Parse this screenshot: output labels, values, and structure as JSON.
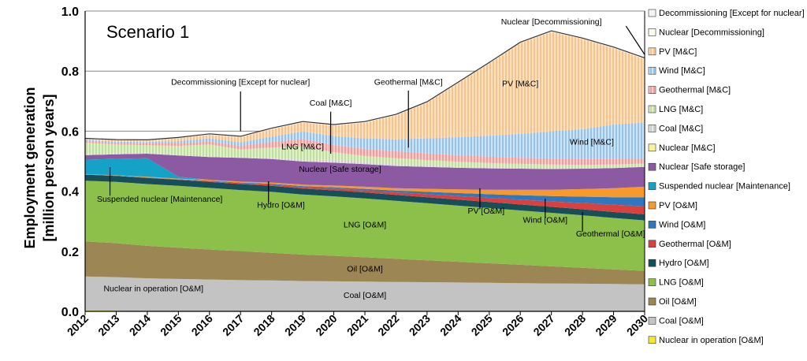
{
  "chart_data": {
    "type": "area",
    "title": "Scenario 1",
    "ylabel_line1": "Employment generation",
    "ylabel_line2": "[million person years]",
    "xlabel": "",
    "ylim": [
      0,
      1.0
    ],
    "yticks": [
      "0.0",
      "0.2",
      "0.4",
      "0.6",
      "0.8",
      "1.0"
    ],
    "x": [
      "2012",
      "2013",
      "2014",
      "2015",
      "2016",
      "2017",
      "2018",
      "2019",
      "2020",
      "2021",
      "2022",
      "2023",
      "2024",
      "2025",
      "2026",
      "2027",
      "2028",
      "2029",
      "2030"
    ],
    "series": [
      {
        "name": "Nuclear in operation [O&M]",
        "color": "#f2ea27",
        "values": [
          0.003,
          0.002,
          0,
          0,
          0,
          0,
          0,
          0,
          0,
          0,
          0,
          0,
          0,
          0,
          0,
          0,
          0,
          0,
          0
        ]
      },
      {
        "name": "Coal [O&M]",
        "color": "#c3c3c3",
        "values": [
          0.113,
          0.112,
          0.11,
          0.108,
          0.106,
          0.104,
          0.103,
          0.101,
          0.1,
          0.099,
          0.098,
          0.097,
          0.096,
          0.095,
          0.094,
          0.093,
          0.092,
          0.091,
          0.09
        ]
      },
      {
        "name": "Oil [O&M]",
        "color": "#9c8653",
        "values": [
          0.117,
          0.113,
          0.108,
          0.104,
          0.1,
          0.096,
          0.092,
          0.088,
          0.085,
          0.081,
          0.077,
          0.073,
          0.069,
          0.065,
          0.061,
          0.057,
          0.053,
          0.049,
          0.045
        ]
      },
      {
        "name": "LNG [O&M]",
        "color": "#8dc04a",
        "values": [
          0.202,
          0.204,
          0.206,
          0.206,
          0.205,
          0.204,
          0.203,
          0.2,
          0.198,
          0.196,
          0.193,
          0.19,
          0.187,
          0.184,
          0.181,
          0.178,
          0.175,
          0.171,
          0.168
        ]
      },
      {
        "name": "Hydro [O&M]",
        "color": "#164f5a",
        "values": [
          0.02,
          0.02,
          0.02,
          0.02,
          0.02,
          0.02,
          0.02,
          0.02,
          0.02,
          0.02,
          0.02,
          0.02,
          0.02,
          0.02,
          0.02,
          0.02,
          0.02,
          0.02,
          0.02
        ]
      },
      {
        "name": "Geothermal [O&M]",
        "color": "#d9413f",
        "values": [
          0,
          0,
          0.001,
          0.001,
          0.002,
          0.003,
          0.004,
          0.005,
          0.006,
          0.007,
          0.008,
          0.01,
          0.012,
          0.014,
          0.016,
          0.018,
          0.021,
          0.024,
          0.027
        ]
      },
      {
        "name": "Wind [O&M]",
        "color": "#2f78bf",
        "values": [
          0.001,
          0.001,
          0.001,
          0.001,
          0.002,
          0.002,
          0.003,
          0.003,
          0.004,
          0.005,
          0.006,
          0.008,
          0.01,
          0.012,
          0.015,
          0.018,
          0.021,
          0.025,
          0.03
        ]
      },
      {
        "name": "PV [O&M]",
        "color": "#f79a2b",
        "values": [
          0.001,
          0.001,
          0.002,
          0.002,
          0.003,
          0.003,
          0.004,
          0.005,
          0.006,
          0.007,
          0.008,
          0.01,
          0.012,
          0.015,
          0.018,
          0.021,
          0.025,
          0.03,
          0.035
        ]
      },
      {
        "name": "Suspended nuclear [Maintenance]",
        "color": "#14a3c6",
        "values": [
          0.048,
          0.055,
          0.062,
          0.006,
          0,
          0,
          0,
          0,
          0,
          0,
          0,
          0,
          0,
          0,
          0,
          0,
          0,
          0,
          0
        ]
      },
      {
        "name": "Nuclear [Safe storage]",
        "color": "#8b5aa3",
        "values": [
          0.015,
          0.015,
          0.015,
          0.071,
          0.076,
          0.079,
          0.078,
          0.077,
          0.076,
          0.075,
          0.074,
          0.073,
          0.072,
          0.071,
          0.07,
          0.069,
          0.068,
          0.067,
          0.066
        ]
      },
      {
        "name": "Nuclear [M&C]",
        "color": "#f6f494",
        "values": [
          0,
          0,
          0,
          0,
          0,
          0,
          0,
          0,
          0,
          0,
          0,
          0,
          0,
          0,
          0,
          0,
          0,
          0,
          0
        ]
      },
      {
        "name": "Coal [M&C]",
        "color": "#d8d8d8",
        "values": [
          0.004,
          0.003,
          0.003,
          0.002,
          0.002,
          0.003,
          0.004,
          0.005,
          0.01,
          0.007,
          0.006,
          0.005,
          0.004,
          0.004,
          0.003,
          0.003,
          0.002,
          0.002,
          0.002
        ]
      },
      {
        "name": "LNG [M&C]",
        "color": "#c9e4a5",
        "values": [
          0.038,
          0.03,
          0.025,
          0.03,
          0.04,
          0.025,
          0.035,
          0.045,
          0.025,
          0.02,
          0.02,
          0.018,
          0.016,
          0.014,
          0.013,
          0.012,
          0.011,
          0.01,
          0.009
        ]
      },
      {
        "name": "Geothermal [M&C]",
        "color": "#f4aaa8",
        "values": [
          0.005,
          0.005,
          0.006,
          0.008,
          0.01,
          0.012,
          0.018,
          0.025,
          0.024,
          0.024,
          0.023,
          0.022,
          0.022,
          0.021,
          0.02,
          0.02,
          0.019,
          0.018,
          0.017
        ]
      },
      {
        "name": "Wind [M&C]",
        "color": "#a2cbee",
        "values": [
          0.004,
          0.004,
          0.005,
          0.008,
          0.01,
          0.012,
          0.018,
          0.025,
          0.03,
          0.035,
          0.04,
          0.05,
          0.06,
          0.07,
          0.08,
          0.09,
          0.1,
          0.115,
          0.12
        ]
      },
      {
        "name": "PV [M&C]",
        "color": "#fbd2a6",
        "values": [
          0.003,
          0.005,
          0.005,
          0.01,
          0.012,
          0.017,
          0.025,
          0.03,
          0.035,
          0.053,
          0.08,
          0.119,
          0.18,
          0.241,
          0.302,
          0.332,
          0.3,
          0.255,
          0.211
        ]
      },
      {
        "name": "Nuclear [Decommissioning]",
        "color": "#fbfbf0",
        "values": [
          0.001,
          0.001,
          0.001,
          0.001,
          0.001,
          0.001,
          0.001,
          0.001,
          0.001,
          0.001,
          0.001,
          0.001,
          0.001,
          0.001,
          0.001,
          0.001,
          0.001,
          0.001,
          0.002
        ]
      },
      {
        "name": "Decommissioning [Except for nuclear]",
        "color": "#f4f4f4",
        "values": [
          0.001,
          0.001,
          0.001,
          0.001,
          0.002,
          0.002,
          0.002,
          0.002,
          0.002,
          0.002,
          0.002,
          0.002,
          0.002,
          0.002,
          0.002,
          0.002,
          0.002,
          0.002,
          0.002
        ]
      }
    ],
    "legend_order": [
      "Decommissioning [Except for nuclear]",
      "Nuclear [Decommissioning]",
      "PV [M&C]",
      "Wind [M&C]",
      "Geothermal [M&C]",
      "LNG [M&C]",
      "Coal [M&C]",
      "Nuclear [M&C]",
      "Nuclear [Safe storage]",
      "Suspended nuclear [Maintenance]",
      "PV [O&M]",
      "Wind [O&M]",
      "Geothermal [O&M]",
      "Hydro [O&M]",
      "LNG [O&M]",
      "Oil [O&M]",
      "Coal [O&M]",
      "Nuclear in operation [O&M]"
    ],
    "legend_position": "right",
    "annotations": [
      {
        "text": "Decommissioning [Except for nuclear]",
        "year": 2017,
        "value": 0.755
      },
      {
        "text": "Nuclear [Decommissioning]",
        "year": 2027,
        "value": 0.955
      },
      {
        "text": "Geothermal [M&C]",
        "year": 2022.4,
        "value": 0.755
      },
      {
        "text": "Coal [M&C]",
        "year": 2019.9,
        "value": 0.685
      },
      {
        "text": "PV [M&C]",
        "year": 2026,
        "value": 0.75
      },
      {
        "text": "LNG [M&C]",
        "year": 2019,
        "value": 0.54
      },
      {
        "text": "Wind [M&C]",
        "year": 2028.3,
        "value": 0.555
      },
      {
        "text": "Nuclear [Safe storage]",
        "year": 2020.2,
        "value": 0.465
      },
      {
        "text": "Suspended nuclear [Maintenance]",
        "year": 2014.4,
        "value": 0.365
      },
      {
        "text": "Hydro [O&M]",
        "year": 2018.3,
        "value": 0.345
      },
      {
        "text": "PV [O&M]",
        "year": 2024.9,
        "value": 0.325
      },
      {
        "text": "Wind [O&M]",
        "year": 2026.8,
        "value": 0.295
      },
      {
        "text": "Geothermal [O&M]",
        "year": 2028.9,
        "value": 0.25
      },
      {
        "text": "LNG [O&M]",
        "year": 2021,
        "value": 0.28
      },
      {
        "text": "Oil [O&M]",
        "year": 2021,
        "value": 0.133
      },
      {
        "text": "Nuclear in operation [O&M]",
        "year": 2014.2,
        "value": 0.067
      },
      {
        "text": "Coal [O&M]",
        "year": 2021,
        "value": 0.045
      }
    ],
    "grid": true
  }
}
